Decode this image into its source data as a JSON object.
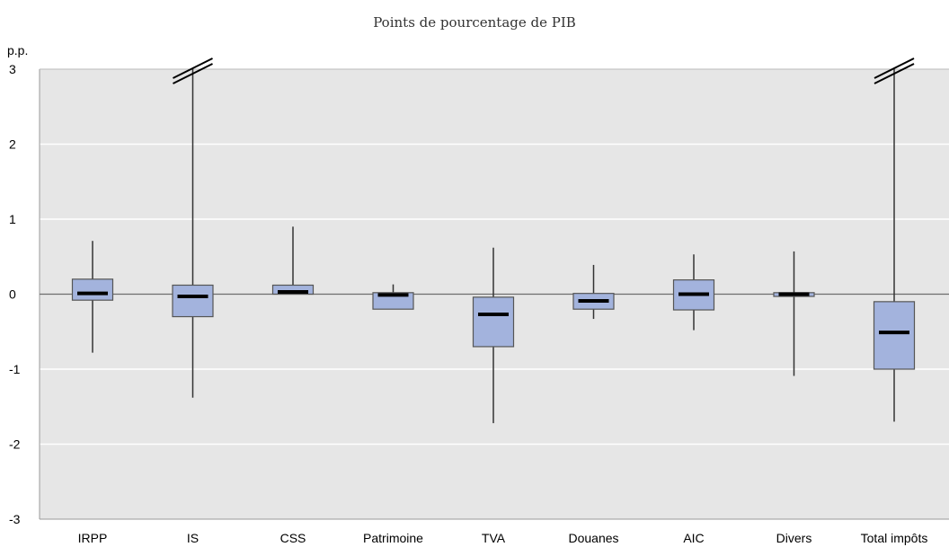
{
  "chart_data": {
    "type": "boxplot",
    "title": "",
    "subtitle": "Points de pourcentage de PIB",
    "ylabel": "p.p.",
    "xlabel": "",
    "ylim": [
      -3,
      3
    ],
    "yticks": [
      3,
      2,
      1,
      0,
      -1,
      -2,
      -3
    ],
    "grid": true,
    "colors": {
      "plot_background": "#e6e6e6",
      "box_fill": "#a3b3dd",
      "box_stroke": "#555555",
      "median": "#000000",
      "whisker": "#333333",
      "gridline": "#ffffff"
    },
    "categories": [
      "IRPP",
      "IS",
      "CSS",
      "Patrimoine",
      "TVA",
      "Douanes",
      "AIC",
      "Divers",
      "Total impôts"
    ],
    "boxes": [
      {
        "category": "IRPP",
        "min": -0.78,
        "q1": -0.08,
        "median": 0.01,
        "q3": 0.2,
        "max": 0.71,
        "truncated": false
      },
      {
        "category": "IS",
        "min": -1.38,
        "q1": -0.3,
        "median": -0.03,
        "q3": 0.12,
        "max": 3.0,
        "truncated": true
      },
      {
        "category": "CSS",
        "min": 0.0,
        "q1": 0.0,
        "median": 0.03,
        "q3": 0.12,
        "max": 0.9,
        "truncated": false
      },
      {
        "category": "Patrimoine",
        "min": -0.2,
        "q1": -0.2,
        "median": -0.01,
        "q3": 0.02,
        "max": 0.13,
        "truncated": false
      },
      {
        "category": "TVA",
        "min": -1.72,
        "q1": -0.7,
        "median": -0.27,
        "q3": -0.04,
        "max": 0.62,
        "truncated": false
      },
      {
        "category": "Douanes",
        "min": -0.33,
        "q1": -0.2,
        "median": -0.09,
        "q3": 0.01,
        "max": 0.39,
        "truncated": false
      },
      {
        "category": "AIC",
        "min": -0.48,
        "q1": -0.21,
        "median": 0.0,
        "q3": 0.19,
        "max": 0.53,
        "truncated": false
      },
      {
        "category": "Divers",
        "min": -1.09,
        "q1": -0.03,
        "median": 0.0,
        "q3": 0.02,
        "max": 0.57,
        "truncated": false
      },
      {
        "category": "Total impôts",
        "min": -1.7,
        "q1": -1.0,
        "median": -0.51,
        "q3": -0.1,
        "max": 3.0,
        "truncated": true
      }
    ]
  }
}
